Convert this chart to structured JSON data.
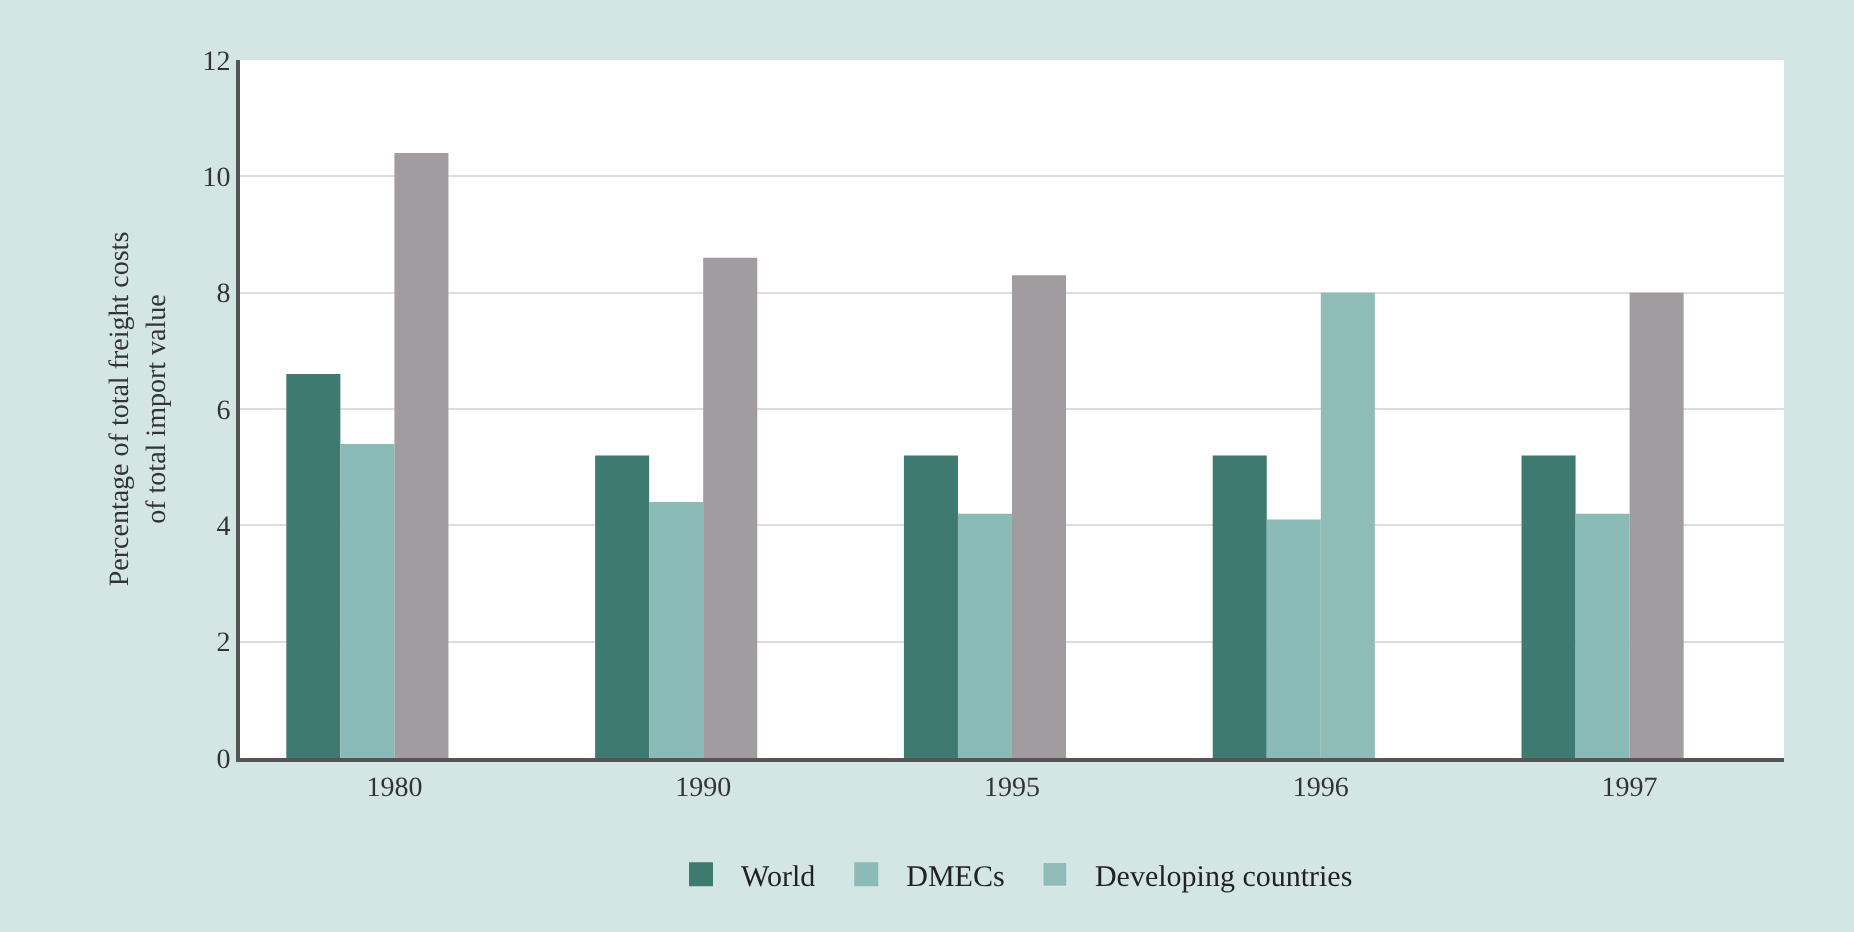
{
  "chart_data": {
    "type": "bar",
    "ylabel": "Percentage of total freight costs\nof total import value",
    "categories": [
      "1980",
      "1990",
      "1995",
      "1996",
      "1997"
    ],
    "series": [
      {
        "name": "World",
        "color": "#3f7a70",
        "values": [
          6.6,
          5.2,
          5.2,
          5.2,
          5.2
        ]
      },
      {
        "name": "DMECs",
        "color": "#8bbbb6",
        "values": [
          5.4,
          4.4,
          4.2,
          4.1,
          4.2
        ]
      },
      {
        "name": "Developing countries",
        "color": "#8fbcb7",
        "colors": [
          "#a09c9f",
          "#a09c9f",
          "#a09c9f",
          "#8fbcb7",
          "#a09c9f"
        ],
        "values": [
          10.4,
          8.6,
          8.3,
          8.0,
          8.0
        ]
      }
    ],
    "ylim": [
      0,
      12
    ],
    "yticks": [
      0,
      2,
      4,
      6,
      8,
      10,
      12
    ],
    "grid": "y",
    "legend": "bottom"
  }
}
